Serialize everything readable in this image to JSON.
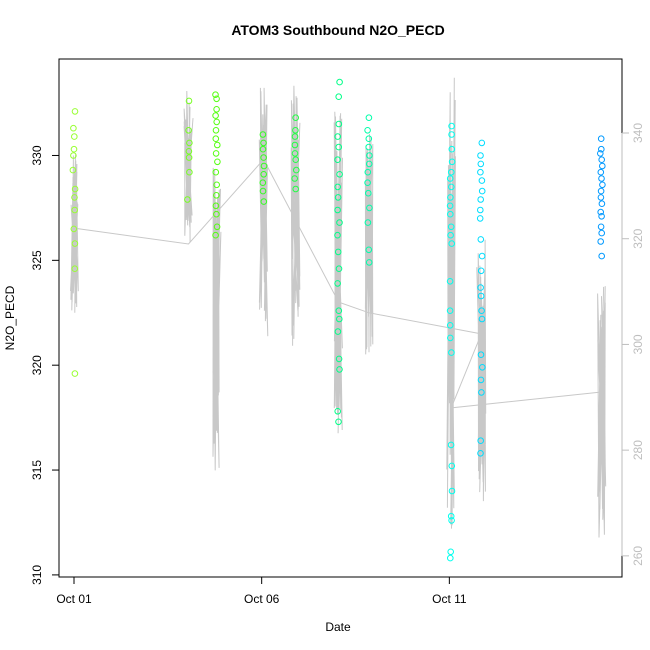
{
  "chart_data": {
    "type": "scatter",
    "title": "ATOM3 Southbound N2O_PECD",
    "xlabel": "Date",
    "ylabel": "N2O_PECD",
    "x_unit": "days since Sep 30",
    "xlim": [
      0.6,
      15.6
    ],
    "ylim": [
      309.9,
      334.6
    ],
    "y2lim": [
      256,
      354
    ],
    "x_ticks": [
      {
        "value": 1,
        "label": "Oct 01"
      },
      {
        "value": 6,
        "label": "Oct 06"
      },
      {
        "value": 11,
        "label": "Oct 11"
      }
    ],
    "y_ticks": [
      310,
      315,
      320,
      325,
      330
    ],
    "y2_ticks": [
      260,
      280,
      300,
      320,
      340
    ],
    "grid": false,
    "altitude_line_color": "#c8c8c8",
    "flights": [
      {
        "x": 1.0,
        "color": "#99ff33",
        "y": [
          332.1,
          331.3,
          330.9,
          330.3,
          330.0,
          329.3,
          328.4,
          328.0,
          327.4,
          326.5,
          325.8,
          324.6,
          319.6
        ],
        "alt_range": [
          305,
          336
        ]
      },
      {
        "x": 4.05,
        "color": "#77ff22",
        "y": [
          332.6,
          331.2,
          330.6,
          330.2,
          329.9,
          329.2,
          327.9
        ],
        "alt_range": [
          318,
          348
        ]
      },
      {
        "x": 4.8,
        "color": "#55ff11",
        "y": [
          332.9,
          332.7,
          332.2,
          331.9,
          331.6,
          331.2,
          330.8,
          330.5,
          330.1,
          329.7,
          329.2,
          328.6,
          328.1,
          327.6,
          327.2,
          326.6,
          326.2
        ],
        "alt_range": [
          276,
          336
        ]
      },
      {
        "x": 6.05,
        "color": "#33ff22",
        "y": [
          331.0,
          330.6,
          330.3,
          329.9,
          329.5,
          329.1,
          328.7,
          328.3,
          327.8
        ],
        "alt_range": [
          301,
          350
        ]
      },
      {
        "x": 6.9,
        "color": "#22ff44",
        "y": [
          331.8,
          331.2,
          330.9,
          330.5,
          330.1,
          329.8,
          329.3,
          328.9,
          328.4
        ],
        "alt_range": [
          299,
          349
        ]
      },
      {
        "x": 8.05,
        "color": "#00ff88",
        "y": [
          333.5,
          332.8,
          331.5,
          330.9,
          330.4,
          329.8,
          329.1,
          328.5,
          328.0,
          327.4,
          326.8,
          326.2,
          325.4,
          324.6,
          323.9,
          322.6,
          322.2,
          321.6,
          320.3,
          319.8,
          317.8,
          317.3
        ],
        "alt_range": [
          282,
          345
        ]
      },
      {
        "x": 8.85,
        "color": "#00ffaa",
        "y": [
          331.8,
          331.2,
          330.8,
          330.4,
          330.0,
          329.6,
          329.2,
          328.7,
          328.2,
          327.5,
          326.8,
          325.5,
          324.9
        ],
        "alt_range": [
          298,
          344
        ]
      },
      {
        "x": 11.05,
        "color": "#00ffee",
        "y": [
          331.4,
          331.0,
          330.3,
          329.7,
          329.2,
          328.9,
          328.5,
          328.0,
          327.6,
          327.2,
          326.6,
          326.2,
          325.8,
          324.0,
          322.6,
          321.9,
          321.3,
          320.6,
          316.2,
          315.2,
          314.0,
          312.8,
          312.6,
          311.1,
          310.8
        ],
        "alt_range": [
          265,
          351
        ]
      },
      {
        "x": 11.85,
        "color": "#00ddff",
        "y": [
          330.6,
          330.0,
          329.6,
          329.2,
          328.8,
          328.3,
          327.9,
          327.4,
          327.0,
          326.0,
          325.2,
          324.5,
          323.7,
          323.3,
          322.6,
          322.2,
          320.5,
          319.9,
          319.3,
          318.7,
          316.4,
          315.8
        ],
        "alt_range": [
          270,
          320
        ]
      },
      {
        "x": 15.05,
        "color": "#0099ff",
        "y": [
          330.8,
          330.3,
          330.1,
          329.8,
          329.5,
          329.2,
          328.9,
          328.6,
          328.3,
          328.0,
          327.7,
          327.3,
          327.1,
          326.6,
          326.3,
          325.9,
          325.2
        ],
        "alt_range": [
          262,
          312
        ]
      }
    ],
    "transit_path": [
      {
        "x": 1.0,
        "alt": 322
      },
      {
        "x": 4.05,
        "alt": 319
      },
      {
        "x": 6.05,
        "alt": 335
      },
      {
        "x": 8.05,
        "alt": 308
      },
      {
        "x": 8.85,
        "alt": 306
      },
      {
        "x": 11.85,
        "alt": 302
      },
      {
        "x": 11.05,
        "alt": 288
      },
      {
        "x": 15.05,
        "alt": 291
      }
    ]
  }
}
